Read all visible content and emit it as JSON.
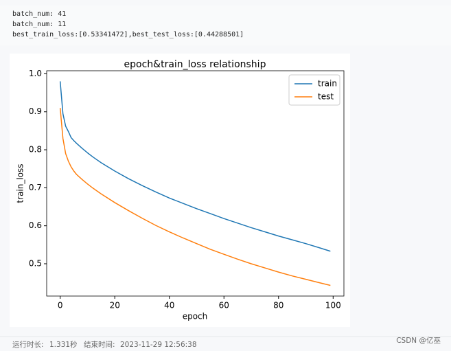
{
  "output_lines": [
    "batch_num: 41",
    "batch_num: 11",
    "best_train_loss:[0.53341472],best_test_loss:[0.44288501]"
  ],
  "chart_data": {
    "type": "line",
    "title": "epoch&train_loss relationship",
    "x_label": "epoch",
    "y_label": "train_loss",
    "x": [
      0,
      1,
      2,
      3,
      4,
      5,
      6,
      8,
      10,
      12,
      15,
      20,
      25,
      30,
      35,
      40,
      45,
      50,
      55,
      60,
      65,
      70,
      75,
      80,
      85,
      90,
      95,
      99
    ],
    "series": [
      {
        "name": "train",
        "color": "#1f77b4",
        "values": [
          0.98,
          0.895,
          0.862,
          0.848,
          0.832,
          0.824,
          0.817,
          0.804,
          0.792,
          0.781,
          0.766,
          0.744,
          0.724,
          0.706,
          0.689,
          0.673,
          0.659,
          0.645,
          0.632,
          0.619,
          0.607,
          0.595,
          0.584,
          0.573,
          0.563,
          0.553,
          0.542,
          0.533
        ]
      },
      {
        "name": "test",
        "color": "#ff7f0e",
        "values": [
          0.91,
          0.83,
          0.79,
          0.77,
          0.755,
          0.744,
          0.735,
          0.722,
          0.71,
          0.699,
          0.684,
          0.661,
          0.64,
          0.62,
          0.601,
          0.584,
          0.568,
          0.553,
          0.538,
          0.525,
          0.512,
          0.5,
          0.489,
          0.478,
          0.468,
          0.459,
          0.45,
          0.443
        ]
      }
    ],
    "xlim": [
      -4.95,
      103.95
    ],
    "xticks": [
      0,
      20,
      40,
      60,
      80,
      100
    ],
    "ylim": [
      0.415,
      1.008
    ],
    "yticks": [
      0.5,
      0.6,
      0.7,
      0.8,
      0.9,
      {
        "value": 1,
        "label": "1.0"
      }
    ],
    "legend": "upper right"
  },
  "footer": {
    "runtime_label": "运行时长:",
    "runtime": "1.331秒",
    "end_label": "结束时间:",
    "end_time": "2023-11-29 12:56:38",
    "watermark": "CSDN @亿巫"
  }
}
